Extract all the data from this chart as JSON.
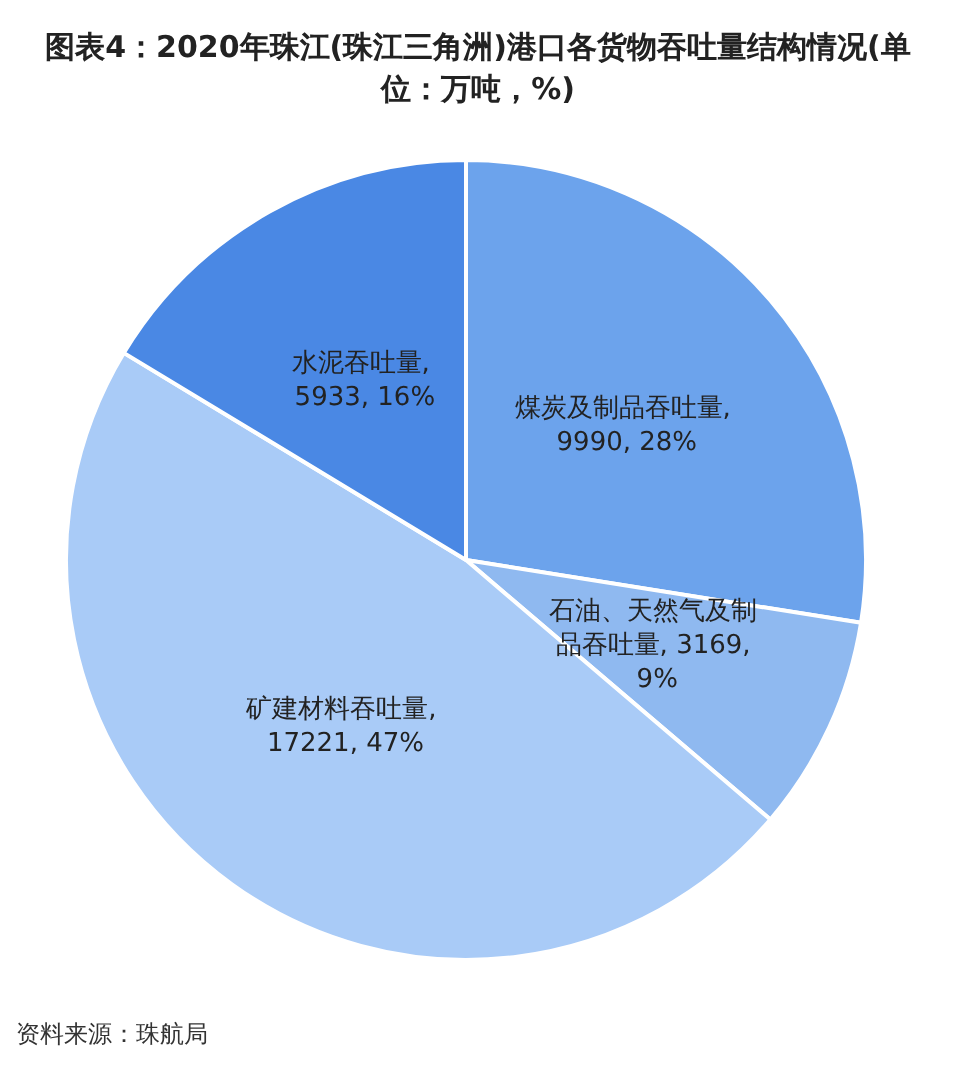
{
  "chart_data": {
    "type": "pie",
    "title": "图表4：2020年珠江(珠江三角洲)港口各货物吞吐量结构情况(单位：万吨，%)",
    "categories": [
      "煤炭及制品吞吐量",
      "石油、天然气及制品吞吐量",
      "矿建材料吞吐量",
      "水泥吞吐量"
    ],
    "values": [
      9990,
      3169,
      17221,
      5933
    ],
    "value_labels": [
      ", 9990, 28%",
      ", 3169, 9%",
      ", 17221, 47%",
      ", 5933, 16%"
    ],
    "colors": [
      "#6ca3ec",
      "#8fb9f0",
      "#a9cbf7",
      "#4a88e4"
    ],
    "legend": false,
    "annotations": [
      "资料来源：珠航局"
    ]
  }
}
